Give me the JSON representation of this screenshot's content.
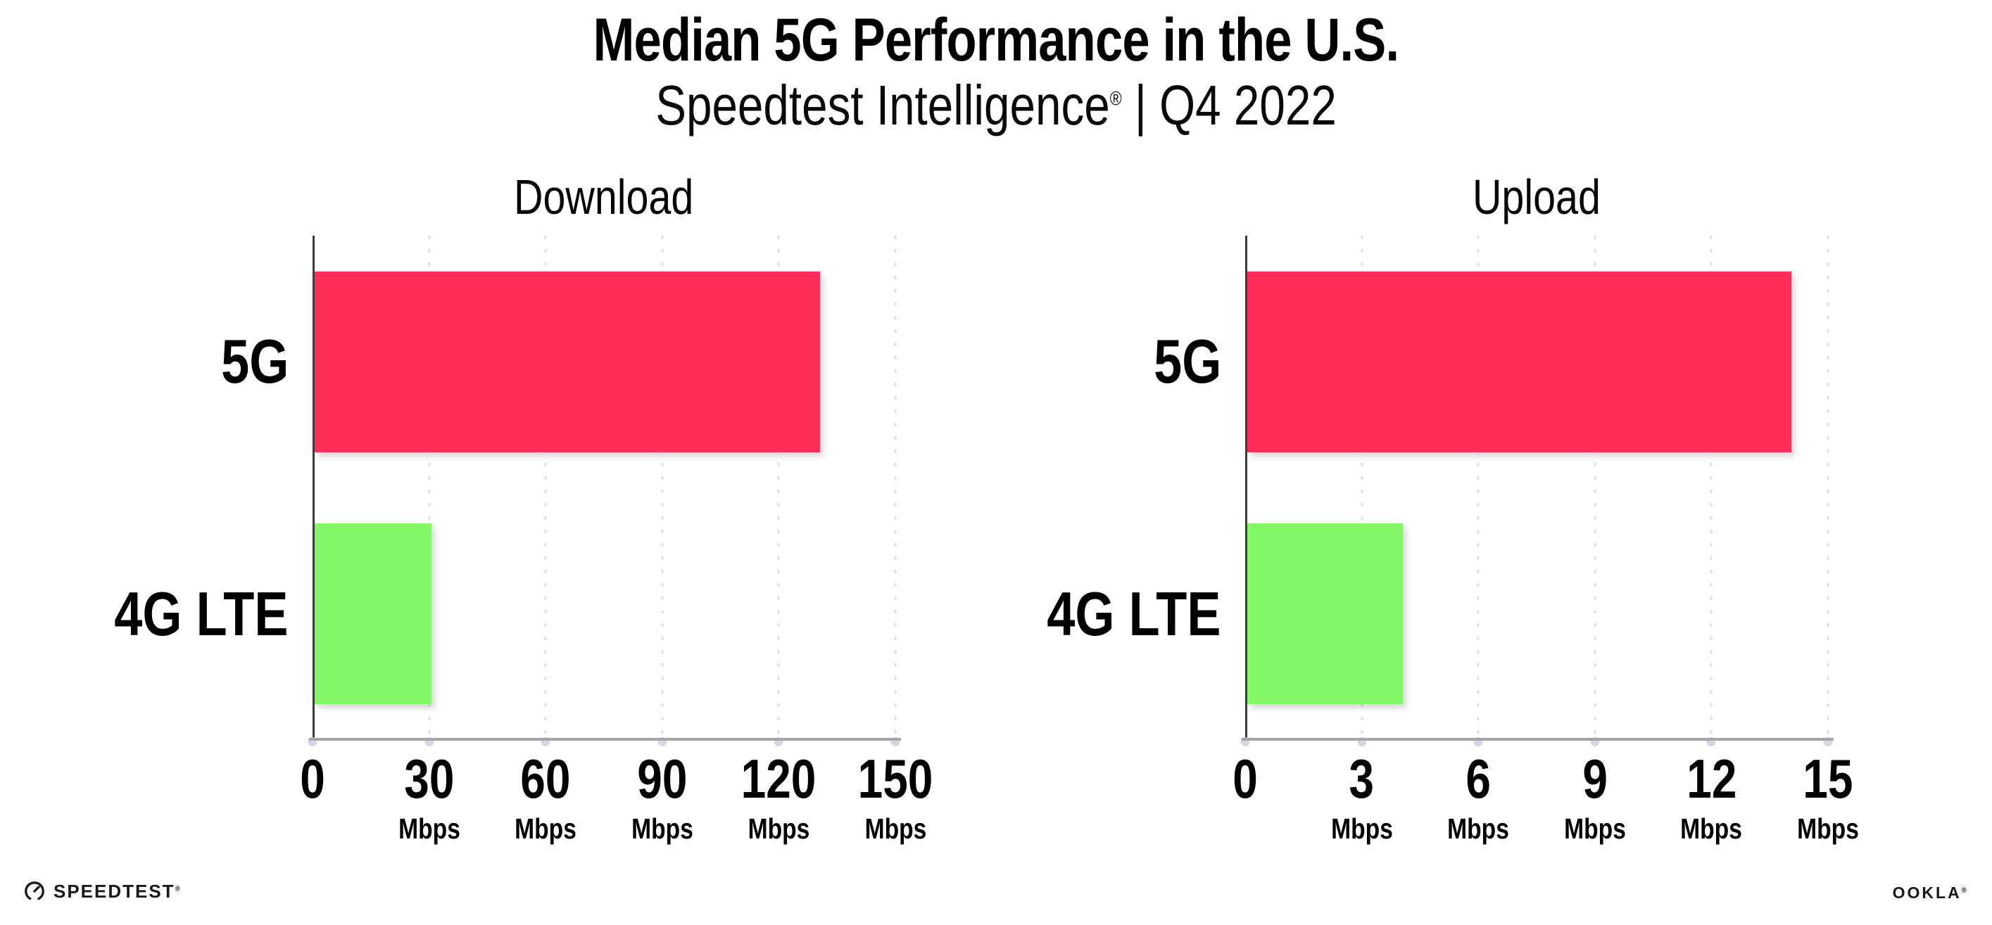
{
  "header": {
    "title": "Median 5G Performance in the U.S.",
    "subtitle": {
      "text": "Speedtest Intelligence",
      "reg": "®",
      "rest": " | Q4 2022"
    }
  },
  "colors": {
    "bar_5g": "#FF2D58",
    "bar_4g_lte": "#84F967",
    "gridline": "#DFE0EA",
    "y_axis_line": "#3D3D3D",
    "x_axis_line": "#A5A5A7",
    "text": "#000000"
  },
  "chart_data": [
    {
      "type": "bar",
      "orientation": "horizontal",
      "title": "Download",
      "categories": [
        "5G",
        "4G LTE"
      ],
      "values": [
        130,
        30
      ],
      "unit": "Mbps",
      "xlim": [
        0,
        150
      ],
      "xticks": [
        0,
        30,
        60,
        90,
        120,
        150
      ],
      "tick_unit": "Mbps",
      "bar_colors": [
        "#FF2D58",
        "#84F967"
      ],
      "grid": "dotted-vertical",
      "legend": "none"
    },
    {
      "type": "bar",
      "orientation": "horizontal",
      "title": "Upload",
      "categories": [
        "5G",
        "4G LTE"
      ],
      "values": [
        14,
        4
      ],
      "unit": "Mbps",
      "xlim": [
        0,
        15
      ],
      "xticks": [
        0,
        3,
        6,
        9,
        12,
        15
      ],
      "tick_unit": "Mbps",
      "bar_colors": [
        "#FF2D58",
        "#84F967"
      ],
      "grid": "dotted-vertical",
      "legend": "none"
    }
  ],
  "footer": {
    "speedtest_text": "SPEEDTEST",
    "speedtest_reg": "®",
    "ookla_text": "OOKLA",
    "ookla_reg": "®"
  }
}
